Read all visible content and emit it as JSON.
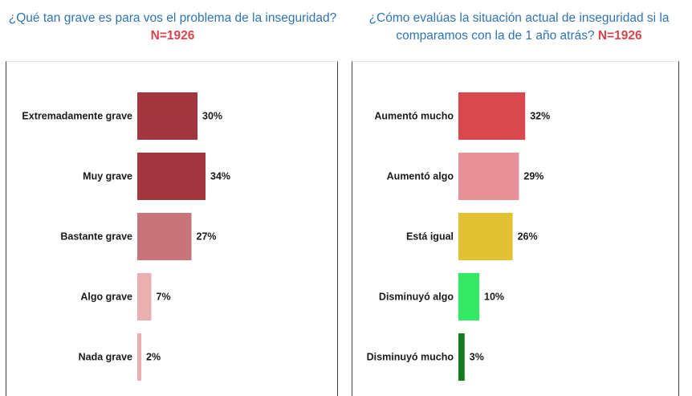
{
  "chart_data": [
    {
      "type": "bar",
      "orientation": "horizontal",
      "title": "¿Qué tan grave es para vos el problema de la inseguridad?",
      "n_label": "N=1926",
      "categories": [
        "Extremadamente grave",
        "Muy grave",
        "Bastante grave",
        "Algo grave",
        "Nada grave"
      ],
      "values": [
        30,
        34,
        27,
        7,
        2
      ],
      "value_labels": [
        "30%",
        "34%",
        "27%",
        "7%",
        "2%"
      ],
      "colors": [
        "#a33540",
        "#a33540",
        "#c8747a",
        "#ebaeb1",
        "#ebaeb1"
      ],
      "xlim": [
        0,
        40
      ]
    },
    {
      "type": "bar",
      "orientation": "horizontal",
      "title": "¿Cómo evalúas la situación actual de inseguridad si la comparamos con la de 1 año atrás?",
      "n_label": "N=1926",
      "categories": [
        "Aumentó mucho",
        "Aumentó algo",
        "Está igual",
        "Disminuyó algo",
        "Disminuyó mucho"
      ],
      "values": [
        32,
        29,
        26,
        10,
        3
      ],
      "value_labels": [
        "32%",
        "29%",
        "26%",
        "10%",
        "3%"
      ],
      "colors": [
        "#d9474f",
        "#e89097",
        "#e2c232",
        "#34ea64",
        "#157d1f"
      ],
      "xlim": [
        0,
        40
      ]
    }
  ]
}
